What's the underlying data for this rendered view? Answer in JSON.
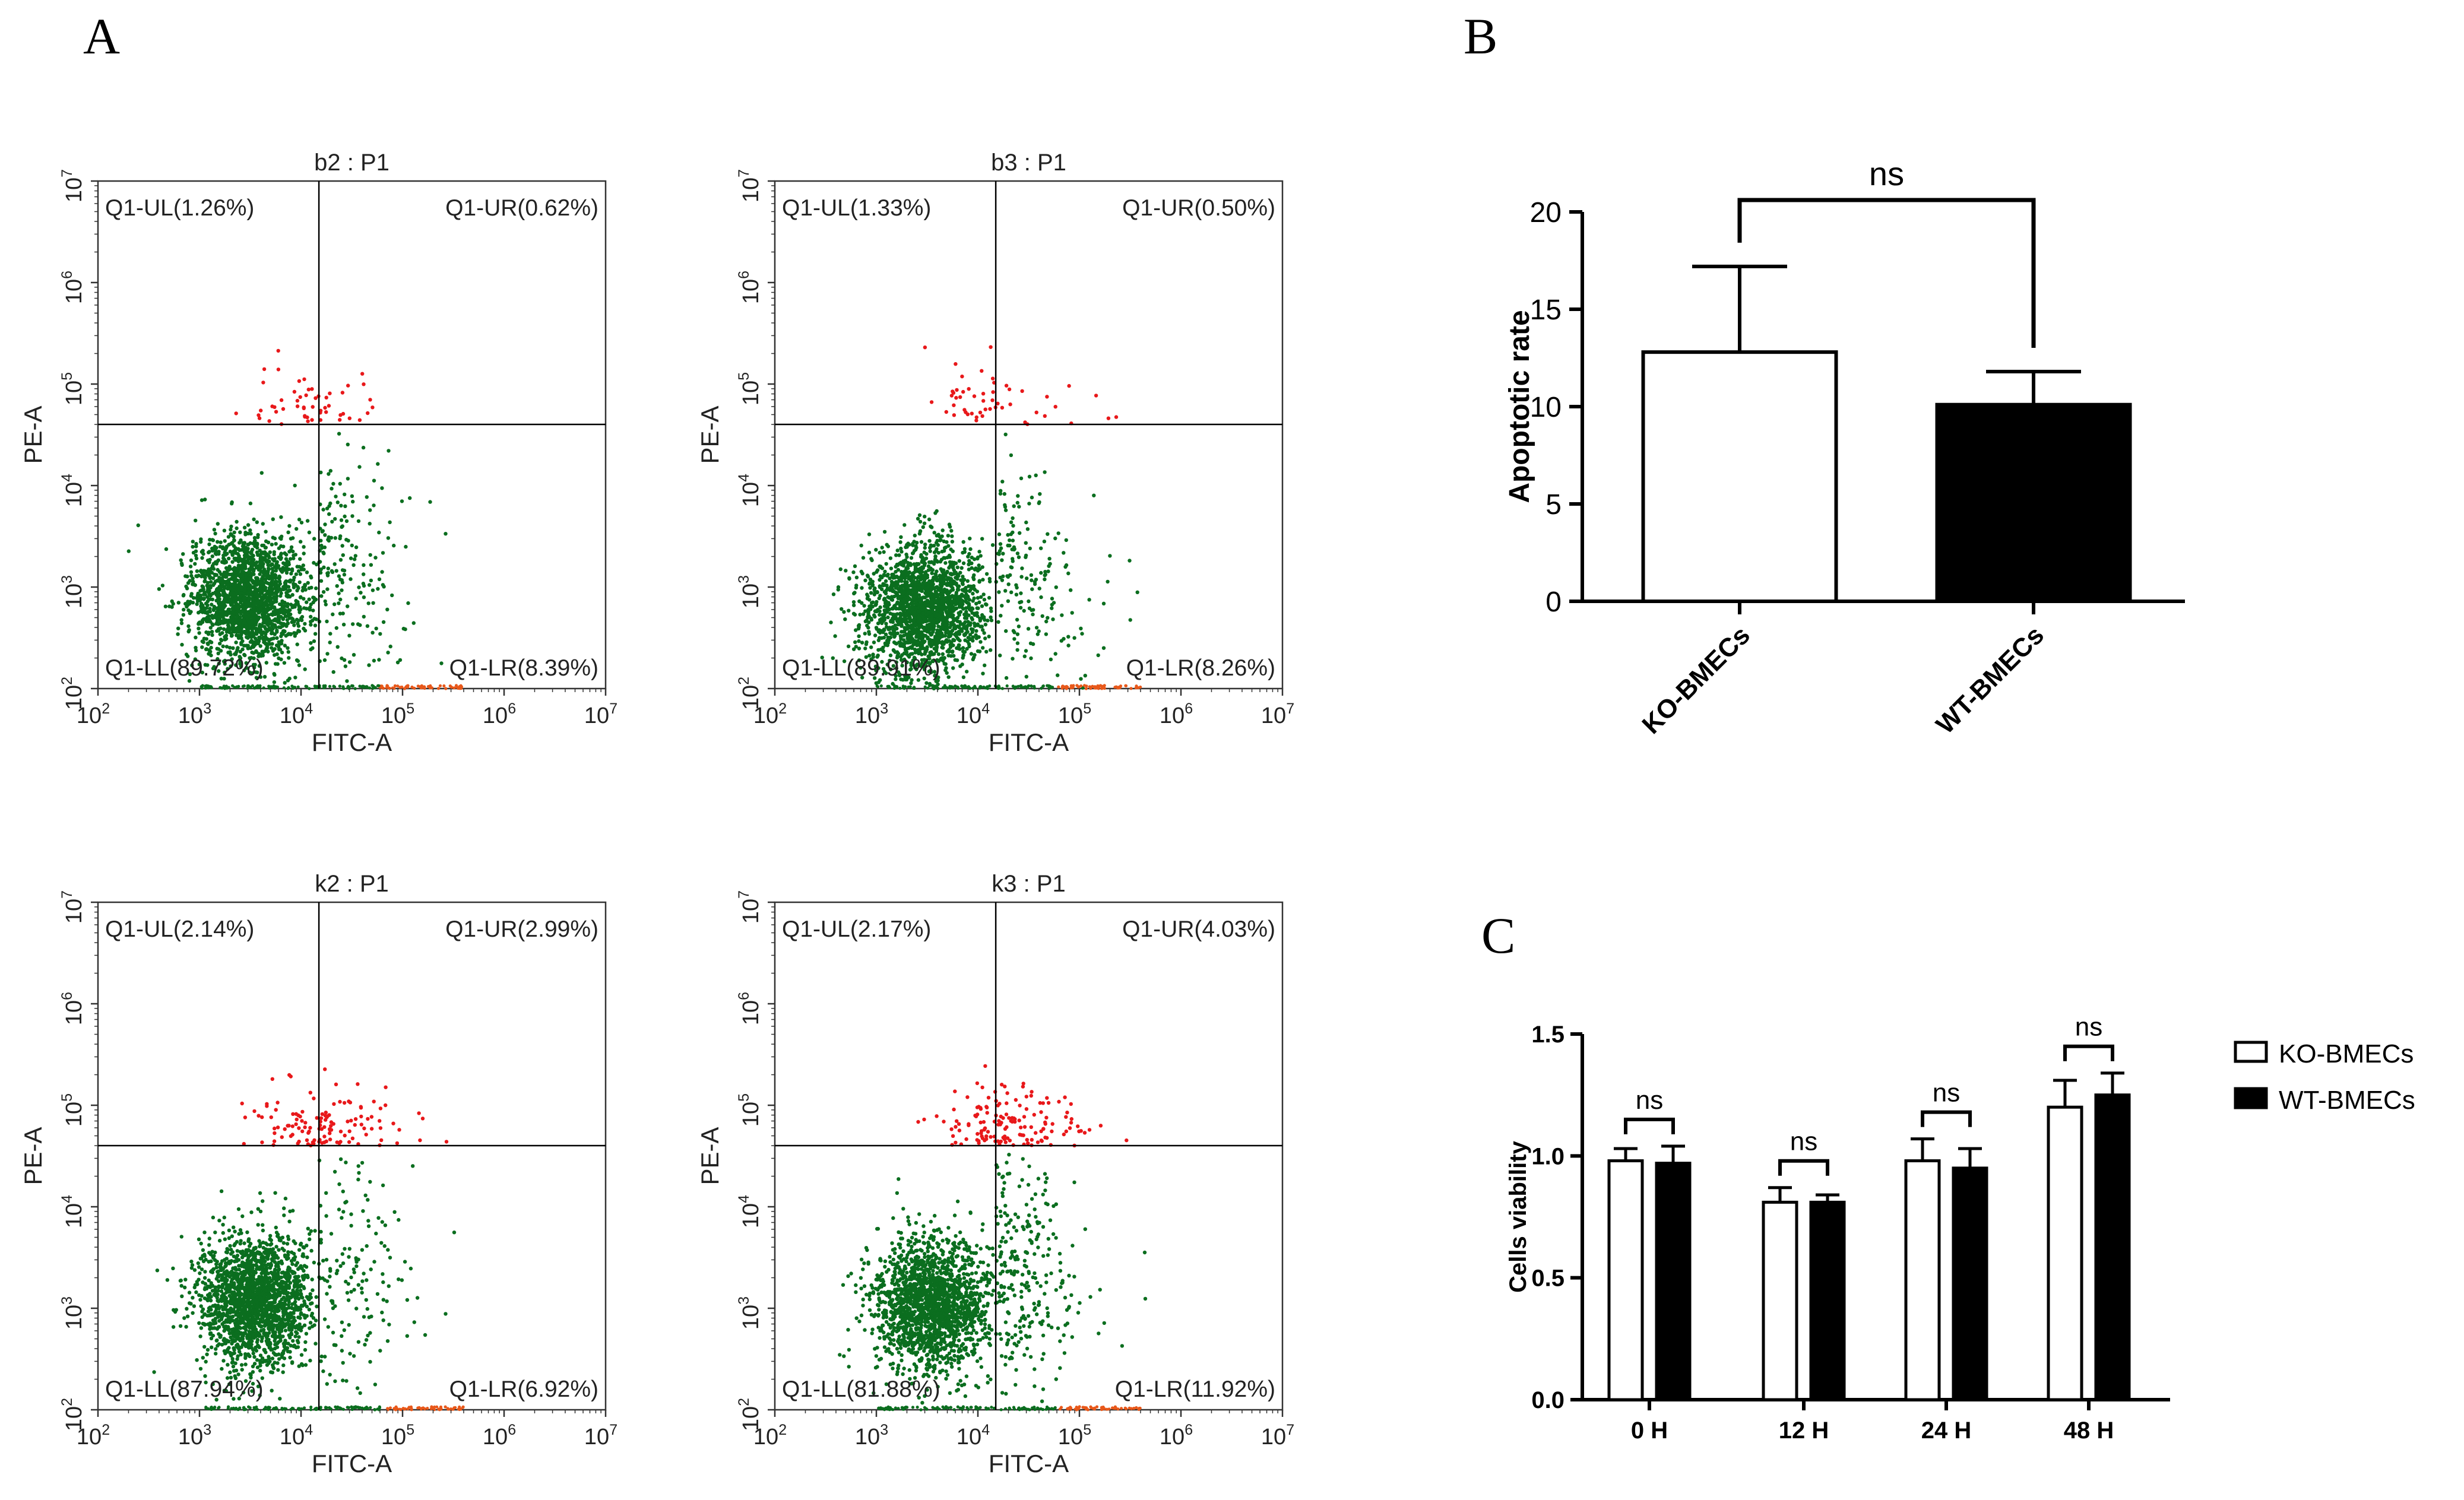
{
  "panels": {
    "a": "A",
    "b": "B",
    "c": "C"
  },
  "chart_data": [
    {
      "type": "scatter",
      "title": "b2 : P1",
      "xlabel": "FITC-A",
      "ylabel": "PE-A",
      "scale": "log",
      "xlim": [
        100,
        10000000
      ],
      "ylim": [
        100,
        10000000
      ],
      "tick_labels": [
        "10",
        "10",
        "10",
        "10",
        "10",
        "10"
      ],
      "tick_exponents": [
        "2",
        "3",
        "4",
        "5",
        "6",
        "7"
      ],
      "gate": {
        "x": 15000,
        "y": 40000
      },
      "quadrants": {
        "UL": "Q1-UL(1.26%)",
        "UR": "Q1-UR(0.62%)",
        "LL": "Q1-LL(89.72%)",
        "LR": "Q1-LR(8.39%)"
      },
      "quadrant_percent": {
        "UL": 1.26,
        "UR": 0.62,
        "LL": 89.72,
        "LR": 8.39
      },
      "population_center": {
        "x": 3000,
        "y": 800
      },
      "dot_colors": {
        "lower": "#0b6e1f",
        "upper": "#e8181a",
        "gate": "#000000"
      }
    },
    {
      "type": "scatter",
      "title": "b3 : P1",
      "xlabel": "FITC-A",
      "ylabel": "PE-A",
      "scale": "log",
      "xlim": [
        100,
        10000000
      ],
      "ylim": [
        100,
        10000000
      ],
      "tick_labels": [
        "10",
        "10",
        "10",
        "10",
        "10",
        "10"
      ],
      "tick_exponents": [
        "2",
        "3",
        "4",
        "5",
        "6",
        "7"
      ],
      "gate": {
        "x": 15000,
        "y": 40000
      },
      "quadrants": {
        "UL": "Q1-UL(1.33%)",
        "UR": "Q1-UR(0.50%)",
        "LL": "Q1-LL(89.91%)",
        "LR": "Q1-LR(8.26%)"
      },
      "quadrant_percent": {
        "UL": 1.33,
        "UR": 0.5,
        "LL": 89.91,
        "LR": 8.26
      },
      "population_center": {
        "x": 3000,
        "y": 600
      },
      "dot_colors": {
        "lower": "#0b6e1f",
        "upper": "#e8181a",
        "gate": "#000000"
      }
    },
    {
      "type": "scatter",
      "title": "k2 : P1",
      "xlabel": "FITC-A",
      "ylabel": "PE-A",
      "scale": "log",
      "xlim": [
        100,
        10000000
      ],
      "ylim": [
        100,
        10000000
      ],
      "tick_labels": [
        "10",
        "10",
        "10",
        "10",
        "10",
        "10"
      ],
      "tick_exponents": [
        "2",
        "3",
        "4",
        "5",
        "6",
        "7"
      ],
      "gate": {
        "x": 15000,
        "y": 40000
      },
      "quadrants": {
        "UL": "Q1-UL(2.14%)",
        "UR": "Q1-UR(2.99%)",
        "LL": "Q1-LL(87.94%)",
        "LR": "Q1-LR(6.92%)"
      },
      "quadrant_percent": {
        "UL": 2.14,
        "UR": 2.99,
        "LL": 87.94,
        "LR": 6.92
      },
      "population_center": {
        "x": 3500,
        "y": 1200
      },
      "dot_colors": {
        "lower": "#0b6e1f",
        "upper": "#e8181a",
        "gate": "#000000"
      }
    },
    {
      "type": "scatter",
      "title": "k3 : P1",
      "xlabel": "FITC-A",
      "ylabel": "PE-A",
      "scale": "log",
      "xlim": [
        100,
        10000000
      ],
      "ylim": [
        100,
        10000000
      ],
      "tick_labels": [
        "10",
        "10",
        "10",
        "10",
        "10",
        "10"
      ],
      "tick_exponents": [
        "2",
        "3",
        "4",
        "5",
        "6",
        "7"
      ],
      "gate": {
        "x": 15000,
        "y": 40000
      },
      "quadrants": {
        "UL": "Q1-UL(2.17%)",
        "UR": "Q1-UR(4.03%)",
        "LL": "Q1-LL(81.88%)",
        "LR": "Q1-LR(11.92%)"
      },
      "quadrant_percent": {
        "UL": 2.17,
        "UR": 4.03,
        "LL": 81.88,
        "LR": 11.92
      },
      "population_center": {
        "x": 3500,
        "y": 1100
      },
      "dot_colors": {
        "lower": "#0b6e1f",
        "upper": "#e8181a",
        "gate": "#000000"
      }
    },
    {
      "type": "bar",
      "ylabel": "Apoptotic rate",
      "ylim": [
        0,
        20
      ],
      "yticks": [
        "0",
        "5",
        "10",
        "15",
        "20"
      ],
      "categories": [
        "KO-BMECs",
        "WT-BMECs"
      ],
      "values": [
        12.8,
        10.1
      ],
      "errors": [
        4.4,
        1.7
      ],
      "fills": [
        "#ffffff",
        "#000000"
      ],
      "significance": "ns"
    },
    {
      "type": "bar",
      "ylabel": "Cells viability",
      "ylim": [
        0,
        1.5
      ],
      "yticks": [
        "0.0",
        "0.5",
        "1.0",
        "1.5"
      ],
      "categories": [
        "0 H",
        "12 H",
        "24 H",
        "48 H"
      ],
      "series": [
        {
          "name": "KO-BMECs",
          "values": [
            0.98,
            0.81,
            0.98,
            1.2
          ],
          "errors": [
            0.05,
            0.06,
            0.09,
            0.11
          ],
          "fill": "#ffffff"
        },
        {
          "name": "WT-BMECs",
          "values": [
            0.97,
            0.81,
            0.95,
            1.25
          ],
          "errors": [
            0.07,
            0.03,
            0.08,
            0.09
          ],
          "fill": "#000000"
        }
      ],
      "significance": [
        "ns",
        "ns",
        "ns",
        "ns"
      ],
      "legend": "right"
    }
  ]
}
